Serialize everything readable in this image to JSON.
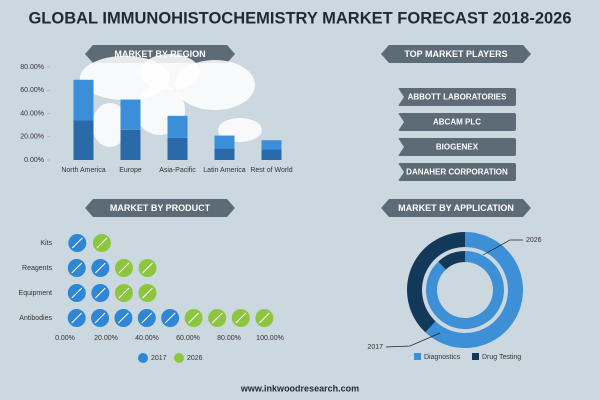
{
  "title": "GLOBAL IMMUNOHISTOCHEMISTRY MARKET FORECAST 2018-2026",
  "players": {
    "title": "TOP MARKET PLAYERS",
    "items": [
      "ABBOTT LABORATORIES",
      "ABCAM PLC",
      "BIOGENEX",
      "DANAHER CORPORATION"
    ]
  },
  "website": "www.inkwoodresearch.com",
  "chart_data": [
    {
      "type": "bar",
      "stacked": true,
      "title": "MARKET BY REGION",
      "categories": [
        "North America",
        "Europe",
        "Asia-Pacific",
        "Latin America",
        "Rest of World"
      ],
      "series": [
        {
          "color": "#2a6aa8",
          "values": [
            34,
            26,
            19,
            10,
            9
          ]
        },
        {
          "color": "#3b8fd8",
          "values": [
            35,
            26,
            19,
            11,
            8
          ]
        }
      ],
      "ylim": [
        0,
        80
      ],
      "yticks": [
        {
          "value": 0,
          "label": "0.00%"
        },
        {
          "value": 20,
          "label": "20.00%"
        },
        {
          "value": 40,
          "label": "40.00%"
        },
        {
          "value": 60,
          "label": "60.00%"
        },
        {
          "value": 80,
          "label": "80.00%"
        }
      ]
    },
    {
      "type": "pictograph",
      "title": "MARKET BY PRODUCT",
      "categories": [
        "Kits",
        "Reagents",
        "Equipment",
        "Antibodies"
      ],
      "series": [
        {
          "name": "2017",
          "color": "#2f86d4",
          "values": [
            12,
            23,
            23,
            57
          ]
        },
        {
          "name": "2026",
          "color": "#8cc63f",
          "values": [
            12,
            23,
            23,
            46
          ]
        }
      ],
      "xlim": [
        0,
        100
      ],
      "xticks": [
        {
          "value": 0,
          "label": "0.00%"
        },
        {
          "value": 20,
          "label": "20.00%"
        },
        {
          "value": 40,
          "label": "40.00%"
        },
        {
          "value": 60,
          "label": "60.00%"
        },
        {
          "value": 80,
          "label": "80.00%"
        },
        {
          "value": 100,
          "label": "100.00%"
        }
      ]
    },
    {
      "type": "donut",
      "title": "MARKET BY APPLICATION",
      "categories": [
        "Diagnostics",
        "Drug Testing"
      ],
      "colors": [
        "#3d8fd6",
        "#12385a"
      ],
      "series": [
        {
          "name": "2017",
          "values": [
            62,
            38
          ]
        },
        {
          "name": "2026",
          "values": [
            88,
            12
          ]
        }
      ]
    }
  ]
}
